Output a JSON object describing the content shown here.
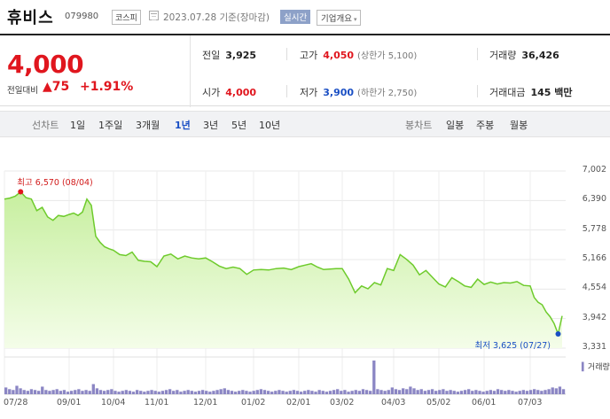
{
  "header": {
    "name": "휴비스",
    "code": "079980",
    "market": "코스피",
    "basis": "2023.07.28  기준(장마감)",
    "realtime": "실시간",
    "overview": "기업개요",
    "overview_caret": "▾"
  },
  "quote": {
    "price": "4,000",
    "vs_label": "전일대비",
    "change": "▲75",
    "change_pct": "+1.91%",
    "prev_label": "전일",
    "prev_value": "3,925",
    "open_label": "시가",
    "open_value": "4,000",
    "high_label": "고가",
    "high_value": "4,050",
    "high_limit": "(상한가 5,100)",
    "low_label": "저가",
    "low_value": "3,900",
    "low_limit": "(하한가 2,750)",
    "volume_label": "거래량",
    "volume_value": "36,426",
    "turnover_label": "거래대금",
    "turnover_value": "145 백만"
  },
  "tabs": {
    "line_label": "선차트",
    "line_periods": [
      "1일",
      "1주일",
      "3개월",
      "1년",
      "3년",
      "5년",
      "10년"
    ],
    "line_active": "1년",
    "candle_label": "봉차트",
    "candle_periods": [
      "일봉",
      "주봉",
      "월봉"
    ]
  },
  "chart_data": {
    "type": "area",
    "colors": {
      "line": "#6ecb2c",
      "fill_top": "#c7ef9f",
      "fill_bottom": "#f4fde9",
      "high": "#e0161e",
      "low": "#1a4fc4",
      "volume": "#8b86c4"
    },
    "x_ticks": [
      "07/28",
      "09/01",
      "10/04",
      "11/01",
      "12/01",
      "01/02",
      "02/01",
      "03/02",
      "04/03",
      "05/02",
      "06/01",
      "07/03"
    ],
    "y_ticks": [
      "7,002",
      "6,390",
      "5,778",
      "5,166",
      "4,554",
      "3,942",
      "3,331"
    ],
    "ylim": [
      3331,
      7002
    ],
    "high_label": "최고 6,570 (08/04)",
    "low_label": "최저 3,625 (07/27)",
    "volume_label": "거래량",
    "series": [
      {
        "name": "",
        "points": [
          [
            "07/28",
            6420
          ],
          [
            "07/30",
            6440
          ],
          [
            "08/02",
            6480
          ],
          [
            "08/04",
            6570
          ],
          [
            "08/06",
            6450
          ],
          [
            "08/09",
            6420
          ],
          [
            "08/12",
            6180
          ],
          [
            "08/15",
            6250
          ],
          [
            "08/18",
            6050
          ],
          [
            "08/21",
            5980
          ],
          [
            "08/25",
            6080
          ],
          [
            "08/28",
            6060
          ],
          [
            "09/01",
            6100
          ],
          [
            "09/05",
            6130
          ],
          [
            "09/08",
            6080
          ],
          [
            "09/12",
            6150
          ],
          [
            "09/15",
            6420
          ],
          [
            "09/18",
            6290
          ],
          [
            "09/21",
            5650
          ],
          [
            "09/24",
            5520
          ],
          [
            "09/28",
            5430
          ],
          [
            "10/02",
            5390
          ],
          [
            "10/04",
            5360
          ],
          [
            "10/08",
            5270
          ],
          [
            "10/12",
            5250
          ],
          [
            "10/16",
            5320
          ],
          [
            "10/20",
            5150
          ],
          [
            "10/24",
            5130
          ],
          [
            "10/28",
            5120
          ],
          [
            "11/01",
            5020
          ],
          [
            "11/05",
            5240
          ],
          [
            "11/09",
            5280
          ],
          [
            "11/13",
            5180
          ],
          [
            "11/17",
            5240
          ],
          [
            "11/21",
            5200
          ],
          [
            "11/25",
            5180
          ],
          [
            "12/01",
            5200
          ],
          [
            "12/05",
            5120
          ],
          [
            "12/09",
            5030
          ],
          [
            "12/13",
            4980
          ],
          [
            "12/17",
            5010
          ],
          [
            "12/21",
            4980
          ],
          [
            "12/26",
            4860
          ],
          [
            "01/02",
            4950
          ],
          [
            "01/06",
            4960
          ],
          [
            "01/10",
            4950
          ],
          [
            "01/14",
            4980
          ],
          [
            "01/19",
            4990
          ],
          [
            "01/24",
            4960
          ],
          [
            "02/01",
            5020
          ],
          [
            "02/04",
            5050
          ],
          [
            "02/08",
            5080
          ],
          [
            "02/12",
            5010
          ],
          [
            "02/16",
            4960
          ],
          [
            "02/20",
            4970
          ],
          [
            "02/24",
            4980
          ],
          [
            "03/02",
            4980
          ],
          [
            "03/06",
            4760
          ],
          [
            "03/10",
            4480
          ],
          [
            "03/13",
            4620
          ],
          [
            "03/16",
            4560
          ],
          [
            "03/20",
            4690
          ],
          [
            "03/24",
            4640
          ],
          [
            "03/28",
            4980
          ],
          [
            "04/03",
            4940
          ],
          [
            "04/06",
            5270
          ],
          [
            "04/09",
            5170
          ],
          [
            "04/13",
            5050
          ],
          [
            "04/17",
            4850
          ],
          [
            "04/20",
            4940
          ],
          [
            "04/24",
            4800
          ],
          [
            "05/02",
            4660
          ],
          [
            "05/05",
            4600
          ],
          [
            "05/09",
            4790
          ],
          [
            "05/12",
            4710
          ],
          [
            "05/16",
            4620
          ],
          [
            "05/20",
            4590
          ],
          [
            "05/25",
            4760
          ],
          [
            "06/01",
            4650
          ],
          [
            "06/05",
            4700
          ],
          [
            "06/09",
            4660
          ],
          [
            "06/13",
            4690
          ],
          [
            "06/17",
            4680
          ],
          [
            "06/21",
            4710
          ],
          [
            "06/25",
            4630
          ],
          [
            "07/03",
            4620
          ],
          [
            "07/06",
            4380
          ],
          [
            "07/10",
            4280
          ],
          [
            "07/14",
            4230
          ],
          [
            "07/18",
            4080
          ],
          [
            "07/21",
            3980
          ],
          [
            "07/24",
            3840
          ],
          [
            "07/27",
            3625
          ],
          [
            "07/28",
            4000
          ]
        ]
      }
    ],
    "volume": [
      8,
      6,
      5,
      10,
      7,
      5,
      4,
      6,
      5,
      4,
      9,
      5,
      4,
      5,
      6,
      4,
      5,
      3,
      4,
      5,
      6,
      4,
      5,
      4,
      12,
      7,
      5,
      4,
      5,
      6,
      4,
      3,
      4,
      5,
      4,
      3,
      5,
      4,
      3,
      4,
      5,
      4,
      3,
      4,
      5,
      6,
      4,
      5,
      3,
      4,
      5,
      4,
      3,
      4,
      5,
      4,
      3,
      4,
      5,
      6,
      7,
      5,
      4,
      3,
      4,
      5,
      4,
      3,
      4,
      5,
      6,
      5,
      4,
      3,
      4,
      5,
      4,
      3,
      4,
      5,
      4,
      3,
      4,
      5,
      4,
      3,
      5,
      4,
      3,
      4,
      5,
      6,
      4,
      5,
      3,
      4,
      5,
      4,
      6,
      5,
      4,
      40,
      6,
      5,
      4,
      5,
      8,
      6,
      5,
      7,
      6,
      9,
      7,
      5,
      6,
      4,
      5,
      6,
      4,
      5,
      6,
      4,
      5,
      4,
      3,
      4,
      5,
      6,
      4,
      5,
      4,
      3,
      4,
      5,
      4,
      6,
      5,
      4,
      5,
      4,
      3,
      4,
      5,
      4,
      5,
      6,
      5,
      4,
      5,
      6,
      8,
      7,
      9,
      6
    ]
  }
}
